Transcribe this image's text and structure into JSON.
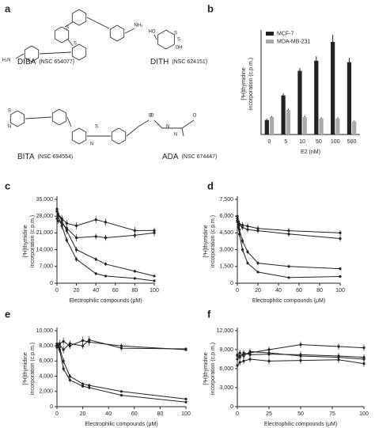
{
  "structures": {
    "panel": "a",
    "compounds": [
      {
        "name": "DIBA",
        "nsc": "(NSC 654077)",
        "atoms": [
          "S",
          "S",
          "H₂N",
          "NH₂"
        ]
      },
      {
        "name": "DITH",
        "nsc": "(NSC 624151)",
        "atoms": [
          "HO",
          "OH",
          "S",
          "S"
        ]
      },
      {
        "name": "BITA",
        "nsc": "(NSC 694554)",
        "atoms": [
          "S",
          "N",
          "S",
          "N",
          "O"
        ]
      },
      {
        "name": "ADA",
        "nsc": "(NSC 674447)",
        "atoms": [
          "O",
          "N",
          "N",
          "O"
        ]
      }
    ]
  },
  "chart_data": [
    {
      "panel": "b",
      "type": "bar",
      "ylabel": [
        "[³H]thymidine",
        "incorporation (c.p.m.)"
      ],
      "xlabel": "E2 (nM)",
      "categories": [
        "0",
        "5",
        "10",
        "50",
        "100",
        "500"
      ],
      "ylim": [
        0,
        35
      ],
      "series": [
        {
          "name": "MCF-7",
          "color": "#222222",
          "values": [
            5,
            13.5,
            22,
            25.5,
            32,
            25
          ],
          "errors": [
            0.5,
            0.7,
            1,
            1.5,
            2.5,
            1.5
          ]
        },
        {
          "name": "MDA-MB-231",
          "color": "#aaaaaa",
          "values": [
            6,
            8.5,
            6,
            5.5,
            5.5,
            4.5
          ],
          "errors": [
            0.4,
            0.4,
            0.5,
            0.4,
            0.4,
            0.3
          ]
        }
      ]
    },
    {
      "panel": "c",
      "type": "line",
      "ylabel": [
        "[³H]thymidine",
        "incorporation (c.p.m.)"
      ],
      "xlabel": "Electrophilic compounds (μM)",
      "xlim": [
        0,
        100
      ],
      "xticks": [
        0,
        20,
        40,
        60,
        80,
        100
      ],
      "ylim": [
        0,
        35000
      ],
      "yticks": [
        0,
        {
          "value": 7000,
          "label": "7,000"
        },
        {
          "value": 14000,
          "label": "14,000"
        },
        {
          "value": 21000,
          "label": "21,000"
        },
        {
          "value": 28000,
          "label": "28,000"
        },
        {
          "value": 35000,
          "label": "35,000"
        }
      ],
      "x": [
        0,
        1,
        5,
        10,
        20,
        40,
        50,
        80,
        100
      ],
      "series": [
        {
          "color": "#222222",
          "values": [
            30000,
            29000,
            27000,
            25000,
            24000,
            26500,
            25500,
            22000,
            22000
          ],
          "errors": [
            1500,
            1200,
            1500,
            1500,
            1500,
            1500,
            1500,
            1500,
            1200
          ]
        },
        {
          "color": "#222222",
          "values": [
            27000,
            26000,
            25000,
            23000,
            19000,
            19500,
            19000,
            20000,
            21000
          ],
          "errors": [
            1500,
            1200,
            1200,
            1500,
            1500,
            1200,
            1200,
            1200,
            1500
          ]
        },
        {
          "color": "#222222",
          "values": [
            31000,
            29000,
            26000,
            22000,
            14000,
            10000,
            8000,
            5000,
            3000
          ],
          "errors": [
            1500,
            1200,
            1500,
            1500,
            1200,
            800,
            800,
            600,
            500
          ]
        },
        {
          "color": "#222222",
          "values": [
            30000,
            28000,
            24000,
            18000,
            10000,
            4000,
            3000,
            2000,
            1000
          ],
          "errors": [
            1500,
            1500,
            1500,
            1200,
            1000,
            600,
            500,
            400,
            300
          ]
        }
      ]
    },
    {
      "panel": "d",
      "type": "line",
      "ylabel": [
        "[³H]thymidine",
        "incorporation (c.p.m.)"
      ],
      "xlabel": "Electrophilic compounds (μM)",
      "xlim": [
        0,
        100
      ],
      "xticks": [
        0,
        20,
        40,
        60,
        80,
        100
      ],
      "ylim": [
        0,
        7500
      ],
      "yticks": [
        0,
        {
          "value": 1500,
          "label": "1,500"
        },
        {
          "value": 3000,
          "label": "3,000"
        },
        {
          "value": 4500,
          "label": "4,500"
        },
        {
          "value": 6000,
          "label": "6,000"
        },
        {
          "value": 7500,
          "label": "7,500"
        }
      ],
      "x": [
        0,
        1,
        2,
        5,
        10,
        20,
        50,
        100
      ],
      "series": [
        {
          "color": "#222222",
          "values": [
            6000,
            5500,
            5300,
            5200,
            5100,
            4900,
            4700,
            4500
          ],
          "errors": [
            300,
            300,
            300,
            250,
            250,
            250,
            250,
            250
          ]
        },
        {
          "color": "#222222",
          "values": [
            5800,
            5400,
            5200,
            5000,
            4800,
            4700,
            4400,
            4000
          ],
          "errors": [
            300,
            300,
            250,
            250,
            250,
            250,
            250,
            250
          ]
        },
        {
          "color": "#222222",
          "values": [
            5600,
            5200,
            4800,
            3800,
            2800,
            1800,
            1500,
            1300
          ],
          "errors": [
            300,
            300,
            250,
            250,
            200,
            200,
            150,
            150
          ]
        },
        {
          "color": "#222222",
          "values": [
            5500,
            5000,
            4400,
            3000,
            1800,
            1000,
            500,
            600
          ],
          "errors": [
            300,
            250,
            250,
            200,
            150,
            100,
            80,
            80
          ]
        }
      ]
    },
    {
      "panel": "e",
      "type": "line",
      "ylabel": [
        "[³H]thymidine",
        "incorporation (c.p.m.)"
      ],
      "xlabel": "Electrophilic compounds (μM)",
      "xlim": [
        0,
        100
      ],
      "xticks": [
        0,
        20,
        40,
        60,
        80,
        100
      ],
      "ylim": [
        0,
        10000
      ],
      "yticks": [
        0,
        {
          "value": 2000,
          "label": "2,000"
        },
        {
          "value": 4000,
          "label": "4,000"
        },
        {
          "value": 6000,
          "label": "6,000"
        },
        {
          "value": 8000,
          "label": "8,000"
        },
        {
          "value": 10000,
          "label": "10,000"
        }
      ],
      "x": [
        0,
        2,
        5,
        10,
        20,
        25,
        50,
        100
      ],
      "series": [
        {
          "color": "#222222",
          "values": [
            7800,
            8300,
            8600,
            8000,
            8700,
            8500,
            8000,
            7500
          ],
          "errors": [
            400,
            500,
            500,
            400,
            500,
            500,
            300,
            200
          ]
        },
        {
          "color": "#222222",
          "values": [
            8000,
            8200,
            7500,
            8300,
            8000,
            8800,
            7700,
            7600
          ],
          "errors": [
            400,
            400,
            500,
            400,
            400,
            500,
            300,
            200
          ]
        },
        {
          "color": "#222222",
          "values": [
            8300,
            7800,
            6000,
            4000,
            3000,
            2800,
            2000,
            1000
          ],
          "errors": [
            400,
            400,
            400,
            300,
            200,
            200,
            150,
            100
          ]
        },
        {
          "color": "#222222",
          "values": [
            8100,
            7500,
            5000,
            3500,
            2700,
            2500,
            1500,
            600
          ],
          "errors": [
            400,
            400,
            400,
            300,
            200,
            200,
            150,
            100
          ]
        }
      ]
    },
    {
      "panel": "f",
      "type": "line",
      "ylabel": [
        "[³H]thymidine",
        "incorporation (c.p.m.)"
      ],
      "xlabel": "Electrophilic compounds (μM)",
      "xlim": [
        0,
        100
      ],
      "xticks": [
        0,
        25,
        50,
        75,
        100
      ],
      "ylim": [
        0,
        12000
      ],
      "yticks": [
        0,
        {
          "value": 3000,
          "label": "3,000"
        },
        {
          "value": 6000,
          "label": "6,000"
        },
        {
          "value": 9000,
          "label": "9,000"
        },
        {
          "value": 12000,
          "label": "12,000"
        }
      ],
      "x": [
        0,
        2,
        5,
        10,
        25,
        50,
        80,
        100
      ],
      "series": [
        {
          "color": "#222222",
          "values": [
            7500,
            8000,
            8200,
            8500,
            9000,
            9800,
            9500,
            9300
          ],
          "errors": [
            500,
            500,
            500,
            500,
            500,
            500,
            500,
            500
          ]
        },
        {
          "color": "#222222",
          "values": [
            8000,
            7800,
            8500,
            8200,
            8300,
            8200,
            8000,
            7800
          ],
          "errors": [
            500,
            500,
            500,
            500,
            500,
            500,
            500,
            500
          ]
        },
        {
          "color": "#222222",
          "values": [
            8200,
            8500,
            8000,
            8700,
            8500,
            8000,
            7800,
            7500
          ],
          "errors": [
            500,
            500,
            500,
            500,
            500,
            500,
            500,
            500
          ]
        },
        {
          "color": "#222222",
          "values": [
            6500,
            7000,
            7200,
            7500,
            7200,
            7300,
            7400,
            6800
          ],
          "errors": [
            500,
            500,
            500,
            500,
            500,
            500,
            500,
            500
          ]
        }
      ]
    }
  ]
}
